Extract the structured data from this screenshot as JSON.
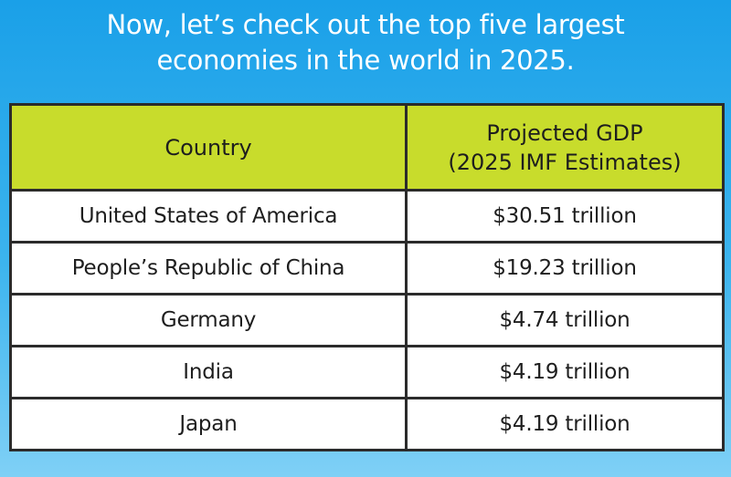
{
  "headline": {
    "line1": "Now, let’s check out the top five largest",
    "line2": "economies in the world in 2025."
  },
  "table": {
    "headers": {
      "country": "Country",
      "gdp_line1": "Projected GDP",
      "gdp_line2": "(2025 IMF Estimates)"
    },
    "rows": [
      {
        "country": "United States of America",
        "gdp": "$30.51 trillion"
      },
      {
        "country": "People’s Republic of China",
        "gdp": "$19.23 trillion"
      },
      {
        "country": "Germany",
        "gdp": "$4.74 trillion"
      },
      {
        "country": "India",
        "gdp": "$4.19 trillion"
      },
      {
        "country": "Japan",
        "gdp": "$4.19 trillion"
      }
    ]
  },
  "colors": {
    "background_top": "#1aa0e8",
    "background_bottom": "#7fd0f6",
    "header_fill": "#c8dc2c",
    "border": "#2b2b2b",
    "text": "#1e1e1e",
    "headline_text": "#ffffff"
  }
}
